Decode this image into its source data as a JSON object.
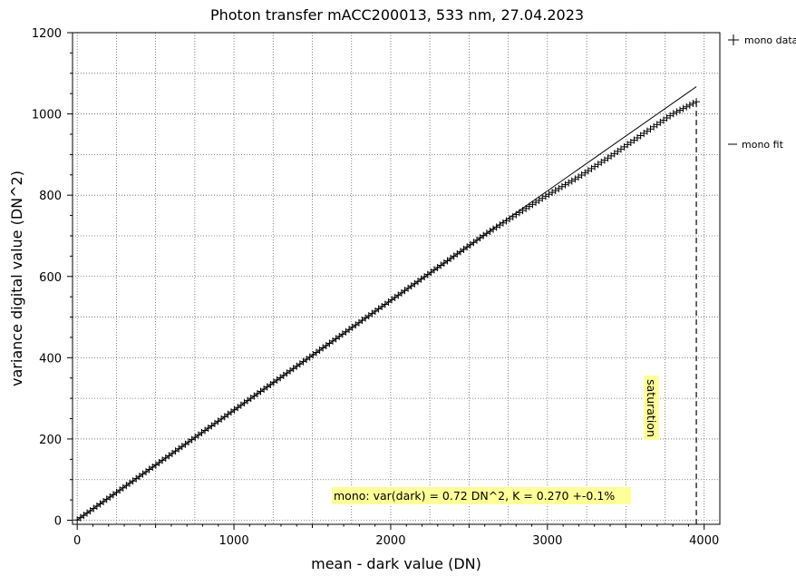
{
  "chart_data": {
    "type": "scatter",
    "title": "Photon transfer mACC200013,  533 nm, 27.04.2023",
    "xlabel": "mean - dark value (DN)",
    "ylabel": "variance digital value (DN^2)",
    "xlim": [
      -30,
      4100
    ],
    "ylim": [
      -10,
      1200
    ],
    "x_ticks": [
      0,
      1000,
      2000,
      3000,
      4000
    ],
    "x_tick_labels": [
      "0",
      "1000",
      "2000",
      "3000",
      "4000"
    ],
    "y_ticks": [
      0,
      200,
      400,
      600,
      800,
      1000,
      1200
    ],
    "y_tick_labels": [
      "0",
      "200",
      "400",
      "600",
      "800",
      "1000",
      "1200"
    ],
    "grid": true,
    "legend_position": "right, outside plot",
    "series": [
      {
        "name": "mono data",
        "kind": "markers",
        "marker": "plus",
        "color": "#000000",
        "x_start": 0,
        "x_end": 3950,
        "points": 190
      },
      {
        "name": "mono fit",
        "kind": "line",
        "color": "#000000",
        "x": [
          0,
          3950
        ],
        "y": [
          0.72,
          1067
        ]
      }
    ],
    "data_curve": [
      {
        "x": 0,
        "y": 0.7
      },
      {
        "x": 1000,
        "y": 271
      },
      {
        "x": 2000,
        "y": 541
      },
      {
        "x": 2600,
        "y": 703
      },
      {
        "x": 2800,
        "y": 752
      },
      {
        "x": 3000,
        "y": 800
      },
      {
        "x": 3200,
        "y": 845
      },
      {
        "x": 3400,
        "y": 895
      },
      {
        "x": 3600,
        "y": 948
      },
      {
        "x": 3800,
        "y": 1000
      },
      {
        "x": 3950,
        "y": 1030
      }
    ],
    "saturation": {
      "label": "saturation",
      "x": 3950,
      "y_top": 1030,
      "line_style": "dashed"
    },
    "annotation": {
      "text": "mono: var(dark) = 0.72 DN^2, K = 0.270 +-0.1%",
      "background": "#ffff99"
    }
  }
}
